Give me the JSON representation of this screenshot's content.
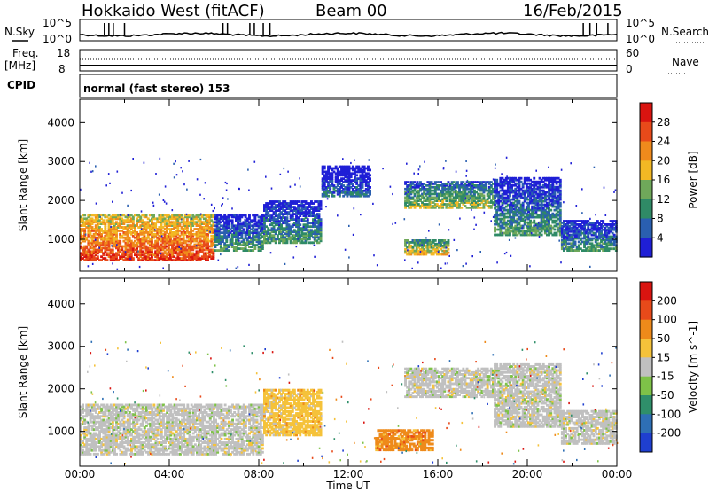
{
  "header": {
    "station": "Hokkaido West (fitACF)",
    "beam": "Beam 00",
    "date": "16/Feb/2015"
  },
  "top_panels": {
    "nsky_label": "N.Sky",
    "nsky_ticks": [
      "10^5",
      "10^0"
    ],
    "nsearch_label": "N.Search",
    "nsearch_ticks": [
      "10^5",
      "10^0"
    ],
    "freq_label_1": "Freq.",
    "freq_label_2": "[MHz]",
    "freq_ticks": [
      "18",
      "8"
    ],
    "nave_label": "Nave",
    "nave_ticks": [
      "60",
      "0"
    ],
    "cpid_label": "CPID",
    "cpid_text": "normal (fast stereo) 153"
  },
  "x_axis": {
    "label": "Time UT",
    "ticks": [
      "00:00",
      "04:00",
      "08:00",
      "12:00",
      "16:00",
      "20:00",
      "00:00"
    ]
  },
  "chart_data": [
    {
      "type": "heatmap",
      "panel": "power",
      "ylabel": "Slant Range [km]",
      "yticks": [
        "1000",
        "2000",
        "3000",
        "4000"
      ],
      "ylim": [
        180,
        4600
      ],
      "xlim_hours": [
        0,
        24
      ],
      "colorbar_label": "Power [dB]",
      "colorbar_ticks": [
        "4",
        "8",
        "12",
        "16",
        "20",
        "24",
        "28"
      ],
      "colors": [
        "#1f1fd6",
        "#2a5fb0",
        "#2f8a66",
        "#6fa85a",
        "#f2b824",
        "#ef8a1c",
        "#e84a1a",
        "#d91410"
      ],
      "regions": [
        {
          "t0": 0.0,
          "t1": 6.0,
          "r_lo": 450,
          "r_hi": 1650,
          "level": 5
        },
        {
          "t0": 6.0,
          "t1": 8.2,
          "r_lo": 700,
          "r_hi": 1650,
          "level": 1
        },
        {
          "t0": 8.2,
          "t1": 10.8,
          "r_lo": 900,
          "r_hi": 2000,
          "level": 1
        },
        {
          "t0": 10.8,
          "t1": 13.0,
          "r_lo": 2100,
          "r_hi": 2900,
          "level": 0
        },
        {
          "t0": 14.5,
          "t1": 18.5,
          "r_lo": 1800,
          "r_hi": 2500,
          "level": 2
        },
        {
          "t0": 14.5,
          "t1": 16.5,
          "r_lo": 600,
          "r_hi": 1000,
          "level": 3
        },
        {
          "t0": 18.5,
          "t1": 21.5,
          "r_lo": 1100,
          "r_hi": 2600,
          "level": 1
        },
        {
          "t0": 21.5,
          "t1": 24.0,
          "r_lo": 700,
          "r_hi": 1500,
          "level": 1
        }
      ]
    },
    {
      "type": "heatmap",
      "panel": "velocity",
      "ylabel": "Slant Range [km]",
      "yticks": [
        "1000",
        "2000",
        "3000",
        "4000"
      ],
      "ylim": [
        180,
        4600
      ],
      "xlim_hours": [
        0,
        24
      ],
      "colorbar_label": "Velocity [m s^-1]",
      "colorbar_ticks": [
        "200",
        "100",
        "50",
        "15",
        "-15",
        "-50",
        "-100",
        "-200"
      ],
      "colors": [
        "#1f3fd0",
        "#2e6fb5",
        "#2f8f6a",
        "#7ec248",
        "#c0c0c0",
        "#f5c23a",
        "#ee8a1a",
        "#e84a1a",
        "#d91410"
      ],
      "regions": [
        {
          "t0": 0.0,
          "t1": 8.2,
          "r_lo": 450,
          "r_hi": 1650,
          "level": 4
        },
        {
          "t0": 8.2,
          "t1": 10.8,
          "r_lo": 900,
          "r_hi": 2000,
          "level": 5
        },
        {
          "t0": 14.5,
          "t1": 18.5,
          "r_lo": 1800,
          "r_hi": 2500,
          "level": 4
        },
        {
          "t0": 13.2,
          "t1": 15.8,
          "r_lo": 550,
          "r_hi": 1050,
          "level": 6
        },
        {
          "t0": 18.5,
          "t1": 21.5,
          "r_lo": 1100,
          "r_hi": 2600,
          "level": 4
        },
        {
          "t0": 21.5,
          "t1": 24.0,
          "r_lo": 700,
          "r_hi": 1500,
          "level": 4
        }
      ]
    }
  ]
}
